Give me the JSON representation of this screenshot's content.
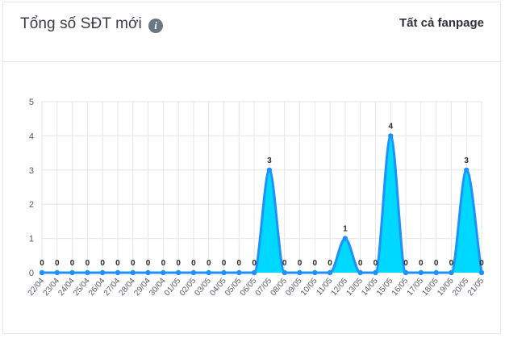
{
  "header": {
    "title": "Tổng số SĐT mới",
    "info_icon": "info-icon",
    "filter_label": "Tất cả fanpage"
  },
  "colors": {
    "line": "#1e90ff",
    "fill": "#00d9ff",
    "grid": "#e6e6e6",
    "axis": "#c9c9c9"
  },
  "chart_data": {
    "type": "area",
    "categories": [
      "22/04",
      "23/04",
      "24/04",
      "25/04",
      "26/04",
      "27/04",
      "28/04",
      "29/04",
      "30/04",
      "01/05",
      "02/05",
      "03/05",
      "04/05",
      "05/05",
      "06/05",
      "07/05",
      "08/05",
      "09/05",
      "10/05",
      "11/05",
      "12/05",
      "13/05",
      "14/05",
      "15/05",
      "16/05",
      "17/05",
      "18/05",
      "19/05",
      "20/05",
      "21/05"
    ],
    "series": [
      {
        "values": [
          0,
          0,
          0,
          0,
          0,
          0,
          0,
          0,
          0,
          0,
          0,
          0,
          0,
          0,
          0,
          3,
          0,
          0,
          0,
          0,
          1,
          0,
          0,
          4,
          0,
          0,
          0,
          0,
          3,
          0
        ]
      }
    ],
    "y_ticks": [
      0,
      1,
      2,
      3,
      4,
      5
    ],
    "ylim": [
      0,
      5
    ],
    "grid": true,
    "data_labels": true
  }
}
